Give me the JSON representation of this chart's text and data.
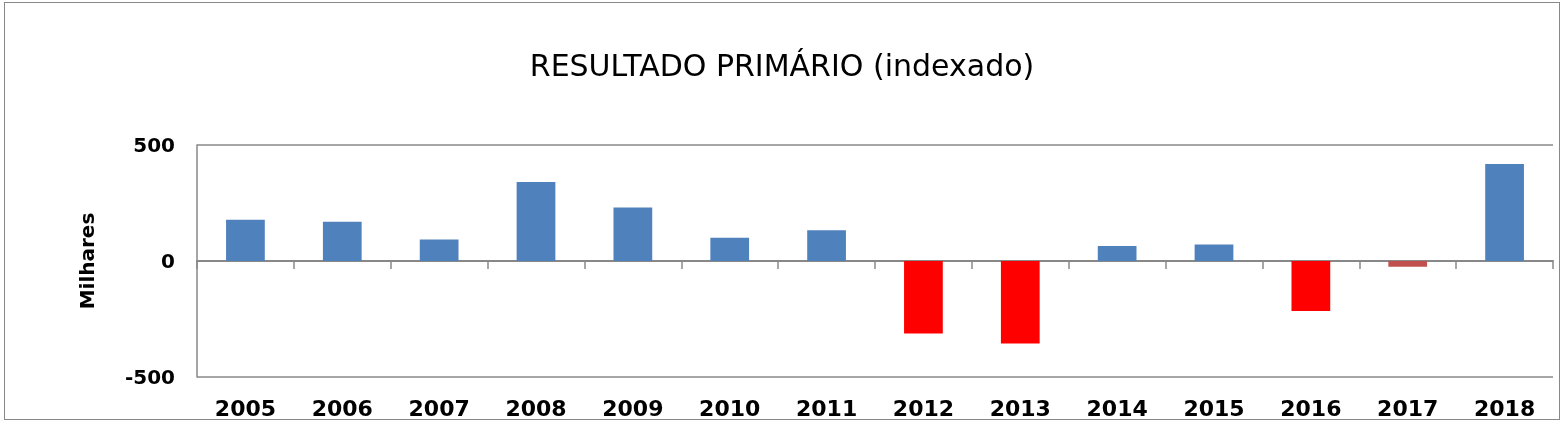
{
  "chart_data": {
    "type": "bar",
    "title": "RESULTADO PRIMÁRIO (indexado)",
    "ylabel": "Milhares",
    "categories": [
      "2005",
      "2006",
      "2007",
      "2008",
      "2009",
      "2010",
      "2011",
      "2012",
      "2013",
      "2014",
      "2015",
      "2016",
      "2017",
      "2018"
    ],
    "values": [
      178,
      169,
      93,
      340,
      231,
      100,
      133,
      -313,
      -356,
      65,
      71,
      -215,
      -25,
      418
    ],
    "colors": [
      "#4f81bd",
      "#4f81bd",
      "#4f81bd",
      "#4f81bd",
      "#4f81bd",
      "#4f81bd",
      "#4f81bd",
      "#ff0000",
      "#ff0000",
      "#4f81bd",
      "#4f81bd",
      "#ff0000",
      "#c0504d",
      "#4f81bd"
    ],
    "ylim": [
      -500,
      500
    ],
    "yticks": [
      -500,
      0,
      500
    ],
    "grid": "y"
  }
}
